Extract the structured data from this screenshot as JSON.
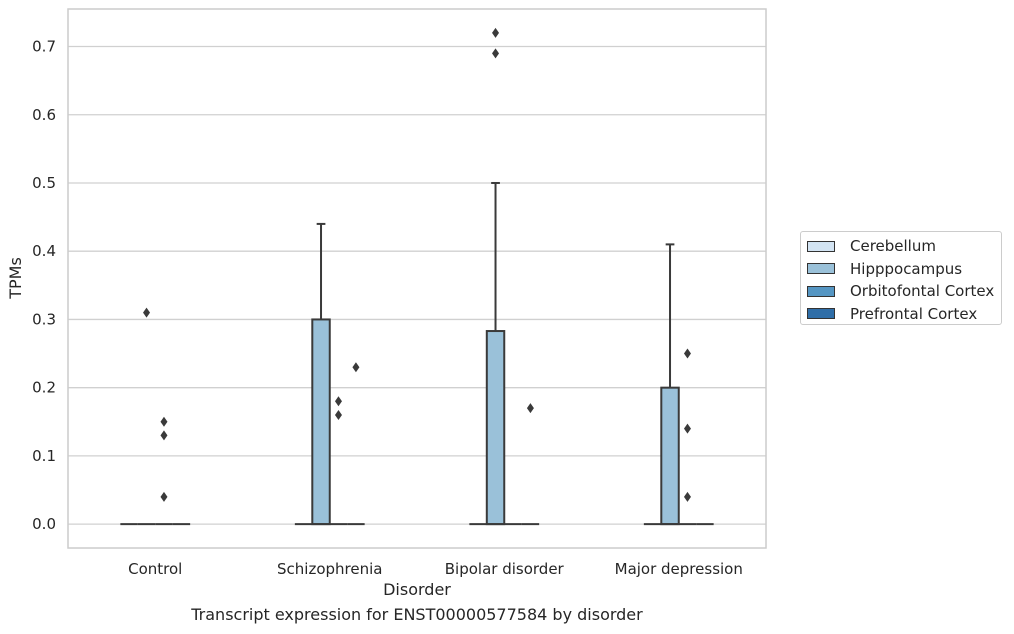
{
  "chart_data": {
    "type": "box",
    "xlabel": "Disorder",
    "ylabel": "TPMs",
    "caption": "Transcript expression for ENST00000577584 by disorder",
    "categories": [
      "Control",
      "Schizophrenia",
      "Bipolar disorder",
      "Major depression"
    ],
    "ylim": [
      -0.035,
      0.755
    ],
    "yticks": [
      "0.0",
      "0.1",
      "0.2",
      "0.3",
      "0.4",
      "0.5",
      "0.6",
      "0.7"
    ],
    "ytick_values": [
      0.0,
      0.1,
      0.2,
      0.3,
      0.4,
      0.5,
      0.6,
      0.7
    ],
    "grid": "horizontal",
    "legend_position": "right",
    "series": [
      {
        "name": "Cerebellum",
        "color": "#d3e4f3",
        "boxes": [
          {
            "category": "Control",
            "q1": 0.0,
            "median": 0.0,
            "q3": 0.0,
            "whisker_low": 0.0,
            "whisker_high": 0.0,
            "outliers": []
          },
          {
            "category": "Schizophrenia",
            "q1": 0.0,
            "median": 0.0,
            "q3": 0.0,
            "whisker_low": 0.0,
            "whisker_high": 0.0,
            "outliers": []
          },
          {
            "category": "Bipolar disorder",
            "q1": 0.0,
            "median": 0.0,
            "q3": 0.0,
            "whisker_low": 0.0,
            "whisker_high": 0.0,
            "outliers": []
          },
          {
            "category": "Major depression",
            "q1": 0.0,
            "median": 0.0,
            "q3": 0.0,
            "whisker_low": 0.0,
            "whisker_high": 0.0,
            "outliers": []
          }
        ]
      },
      {
        "name": "Hipppocampus",
        "color": "#9ac1d9",
        "boxes": [
          {
            "category": "Control",
            "q1": 0.0,
            "median": 0.0,
            "q3": 0.0,
            "whisker_low": 0.0,
            "whisker_high": 0.0,
            "outliers": [
              0.31
            ]
          },
          {
            "category": "Schizophrenia",
            "q1": 0.0,
            "median": 0.0,
            "q3": 0.3,
            "whisker_low": 0.0,
            "whisker_high": 0.44,
            "outliers": []
          },
          {
            "category": "Bipolar disorder",
            "q1": 0.0,
            "median": 0.0,
            "q3": 0.283,
            "whisker_low": 0.0,
            "whisker_high": 0.5,
            "outliers": [
              0.69,
              0.72
            ]
          },
          {
            "category": "Major depression",
            "q1": 0.0,
            "median": 0.0,
            "q3": 0.2,
            "whisker_low": 0.0,
            "whisker_high": 0.41,
            "outliers": []
          }
        ]
      },
      {
        "name": "Orbitofontal Cortex",
        "color": "#5596c3",
        "boxes": [
          {
            "category": "Control",
            "q1": 0.0,
            "median": 0.0,
            "q3": 0.0,
            "whisker_low": 0.0,
            "whisker_high": 0.0,
            "outliers": [
              0.04,
              0.13,
              0.15
            ]
          },
          {
            "category": "Schizophrenia",
            "q1": 0.0,
            "median": 0.0,
            "q3": 0.0,
            "whisker_low": 0.0,
            "whisker_high": 0.0,
            "outliers": [
              0.16,
              0.18
            ]
          },
          {
            "category": "Bipolar disorder",
            "q1": 0.0,
            "median": 0.0,
            "q3": 0.0,
            "whisker_low": 0.0,
            "whisker_high": 0.0,
            "outliers": []
          },
          {
            "category": "Major depression",
            "q1": 0.0,
            "median": 0.0,
            "q3": 0.0,
            "whisker_low": 0.0,
            "whisker_high": 0.0,
            "outliers": [
              0.04,
              0.14,
              0.25
            ]
          }
        ]
      },
      {
        "name": "Prefrontal Cortex",
        "color": "#2f6ea8",
        "boxes": [
          {
            "category": "Control",
            "q1": 0.0,
            "median": 0.0,
            "q3": 0.0,
            "whisker_low": 0.0,
            "whisker_high": 0.0,
            "outliers": []
          },
          {
            "category": "Schizophrenia",
            "q1": 0.0,
            "median": 0.0,
            "q3": 0.0,
            "whisker_low": 0.0,
            "whisker_high": 0.0,
            "outliers": [
              0.23
            ]
          },
          {
            "category": "Bipolar disorder",
            "q1": 0.0,
            "median": 0.0,
            "q3": 0.0,
            "whisker_low": 0.0,
            "whisker_high": 0.0,
            "outliers": [
              0.17
            ]
          },
          {
            "category": "Major depression",
            "q1": 0.0,
            "median": 0.0,
            "q3": 0.0,
            "whisker_low": 0.0,
            "whisker_high": 0.0,
            "outliers": []
          }
        ]
      }
    ]
  }
}
